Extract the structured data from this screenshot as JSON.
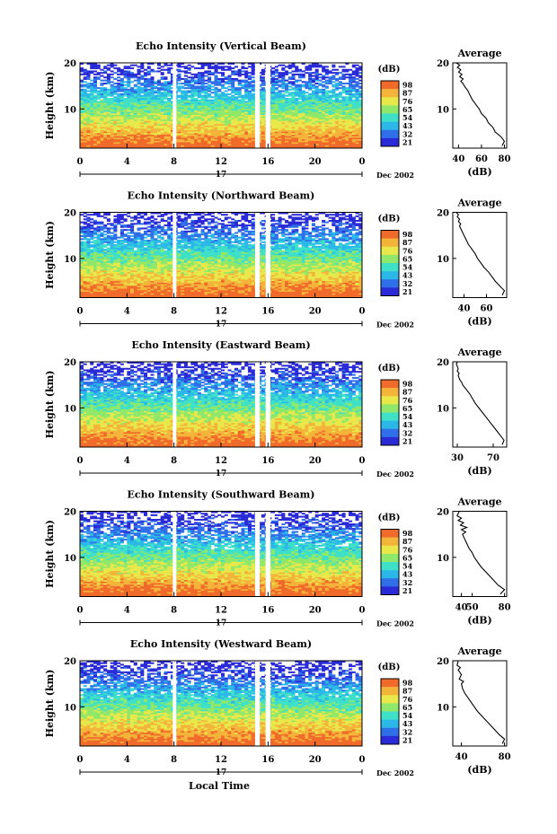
{
  "figure": {
    "xlabel": "Local Time",
    "cbar_title": "(dB)",
    "cbar_ticks": [
      "98",
      "87",
      "76",
      "65",
      "54",
      "43",
      "32",
      "21"
    ],
    "colors": [
      "#2a2ad6",
      "#2f6fe8",
      "#2bb8e8",
      "#3fe0c8",
      "#8fe86a",
      "#e8e84a",
      "#f4b43a",
      "#f06a2a"
    ],
    "profile_title": "Average",
    "profile_xlabel": "(dB)",
    "date_label": "Dec 2002",
    "day_label": "17"
  },
  "chart_data": [
    {
      "type": "heatmap",
      "title": "Echo Intensity (Vertical Beam)",
      "ylabel": "Height (km)",
      "xticks": [
        "0",
        "4",
        "8",
        "12",
        "16",
        "20",
        "0"
      ],
      "yticks": [
        "10",
        "20"
      ],
      "xlim": [
        0,
        24
      ],
      "ylim": [
        1.5,
        20
      ],
      "clim": [
        21,
        98
      ],
      "gaps_hours": [
        [
          7.9,
          8.2
        ],
        [
          14.9,
          15.3
        ],
        [
          15.8,
          16.2
        ]
      ],
      "profile": {
        "type": "line",
        "title": "Average",
        "xlabel": "(dB)",
        "xticks": [
          "40",
          "60",
          "80"
        ],
        "yticks": [
          "10",
          "20"
        ],
        "xlim": [
          35,
          82
        ],
        "ylim": [
          1.5,
          20
        ],
        "x": [
          78,
          80,
          77,
          72,
          70,
          66,
          64,
          60,
          58,
          55,
          52,
          50,
          48,
          45,
          44,
          42,
          44,
          41,
          43,
          40,
          42,
          39,
          41,
          38,
          40,
          38
        ],
        "y": [
          2,
          3,
          4,
          5,
          6,
          7,
          8,
          9,
          10,
          11,
          12,
          13,
          14,
          15,
          15.5,
          16,
          16.5,
          17,
          17.5,
          18,
          18.5,
          19,
          19.5,
          20,
          20,
          20
        ]
      }
    },
    {
      "type": "heatmap",
      "title": "Echo Intensity (Northward Beam)",
      "ylabel": "Height (km)",
      "xticks": [
        "0",
        "4",
        "8",
        "12",
        "16",
        "20",
        "0"
      ],
      "yticks": [
        "10",
        "20"
      ],
      "xlim": [
        0,
        24
      ],
      "ylim": [
        1.5,
        20
      ],
      "clim": [
        21,
        98
      ],
      "gaps_hours": [
        [
          7.9,
          8.2
        ],
        [
          14.9,
          15.3
        ],
        [
          15.8,
          16.2
        ]
      ],
      "profile": {
        "type": "line",
        "title": "Average",
        "xlabel": "(dB)",
        "xticks": [
          "40",
          "60"
        ],
        "yticks": [
          "10",
          "20"
        ],
        "xlim": [
          30,
          78
        ],
        "ylim": [
          1.5,
          20
        ],
        "x": [
          74,
          76,
          72,
          68,
          65,
          62,
          58,
          55,
          52,
          50,
          47,
          44,
          42,
          40,
          38,
          37,
          36,
          37,
          35,
          36,
          34,
          35,
          33,
          34
        ],
        "y": [
          2,
          3,
          4,
          5,
          6,
          7,
          8,
          9,
          10,
          11,
          12,
          13,
          14,
          15,
          16,
          16.5,
          17,
          17.5,
          18,
          18.5,
          19,
          19.5,
          20,
          20
        ]
      }
    },
    {
      "type": "heatmap",
      "title": "Echo Intensity (Eastward Beam)",
      "ylabel": "Height (km)",
      "xticks": [
        "0",
        "4",
        "8",
        "12",
        "16",
        "20",
        "0"
      ],
      "yticks": [
        "10",
        "20"
      ],
      "xlim": [
        0,
        24
      ],
      "ylim": [
        1.5,
        20
      ],
      "clim": [
        21,
        98
      ],
      "gaps_hours": [
        [
          7.9,
          8.2
        ],
        [
          14.9,
          15.3
        ],
        [
          15.8,
          16.2
        ]
      ],
      "profile": {
        "type": "line",
        "title": "Average",
        "xlabel": "(dB)",
        "xticks": [
          "30",
          "70"
        ],
        "yticks": [
          "10",
          "20"
        ],
        "xlim": [
          25,
          85
        ],
        "ylim": [
          1.5,
          20
        ],
        "x": [
          80,
          82,
          78,
          74,
          70,
          66,
          62,
          58,
          54,
          50,
          47,
          44,
          40,
          36,
          35,
          33,
          31,
          32,
          30,
          31,
          30,
          29,
          30
        ],
        "y": [
          2,
          3,
          4,
          5,
          6,
          7,
          8,
          9,
          10,
          11,
          12,
          13,
          14,
          15,
          15.5,
          16,
          17,
          17.5,
          18,
          18.5,
          19,
          19.5,
          20
        ]
      }
    },
    {
      "type": "heatmap",
      "title": "Echo Intensity (Southward Beam)",
      "ylabel": "Height (km)",
      "xticks": [
        "0",
        "4",
        "8",
        "12",
        "16",
        "20",
        "0"
      ],
      "yticks": [
        "10",
        "20"
      ],
      "xlim": [
        0,
        24
      ],
      "ylim": [
        1.5,
        20
      ],
      "clim": [
        21,
        98
      ],
      "gaps_hours": [
        [
          7.9,
          8.2
        ],
        [
          14.9,
          15.3
        ],
        [
          15.8,
          16.2
        ]
      ],
      "profile": {
        "type": "line",
        "title": "Average",
        "xlabel": "(dB)",
        "xticks": [
          "40",
          "50",
          "80"
        ],
        "yticks": [
          "10",
          "20"
        ],
        "xlim": [
          32,
          82
        ],
        "ylim": [
          1.5,
          20
        ],
        "x": [
          76,
          80,
          74,
          70,
          66,
          62,
          58,
          55,
          52,
          50,
          47,
          45,
          43,
          41,
          44,
          40,
          45,
          39,
          42,
          37,
          40,
          36,
          38
        ],
        "y": [
          2,
          3,
          4,
          5,
          6,
          7,
          8,
          9,
          10,
          11,
          12,
          13,
          14,
          15,
          15.5,
          16,
          16.5,
          17,
          17.5,
          18,
          18.5,
          19,
          20
        ]
      }
    },
    {
      "type": "heatmap",
      "title": "Echo Intensity (Westward Beam)",
      "ylabel": "Height (km)",
      "xticks": [
        "0",
        "4",
        "8",
        "12",
        "16",
        "20",
        "0"
      ],
      "yticks": [
        "10",
        "20"
      ],
      "xlim": [
        0,
        24
      ],
      "ylim": [
        1.5,
        20
      ],
      "clim": [
        21,
        98
      ],
      "gaps_hours": [
        [
          7.9,
          8.2
        ],
        [
          14.9,
          15.3
        ],
        [
          15.8,
          16.2
        ]
      ],
      "profile": {
        "type": "line",
        "title": "Average",
        "xlabel": "(dB)",
        "xticks": [
          "40",
          "80"
        ],
        "yticks": [
          "10",
          "20"
        ],
        "xlim": [
          32,
          82
        ],
        "ylim": [
          1.5,
          20
        ],
        "x": [
          78,
          80,
          75,
          71,
          67,
          63,
          59,
          55,
          52,
          49,
          46,
          43,
          41,
          40,
          42,
          38,
          40,
          37,
          39,
          36,
          37
        ],
        "y": [
          2,
          3,
          4,
          5,
          6,
          7,
          8,
          9,
          10,
          11,
          12,
          13,
          14,
          15,
          15.5,
          16,
          17,
          18,
          18.5,
          19,
          20
        ]
      }
    }
  ]
}
